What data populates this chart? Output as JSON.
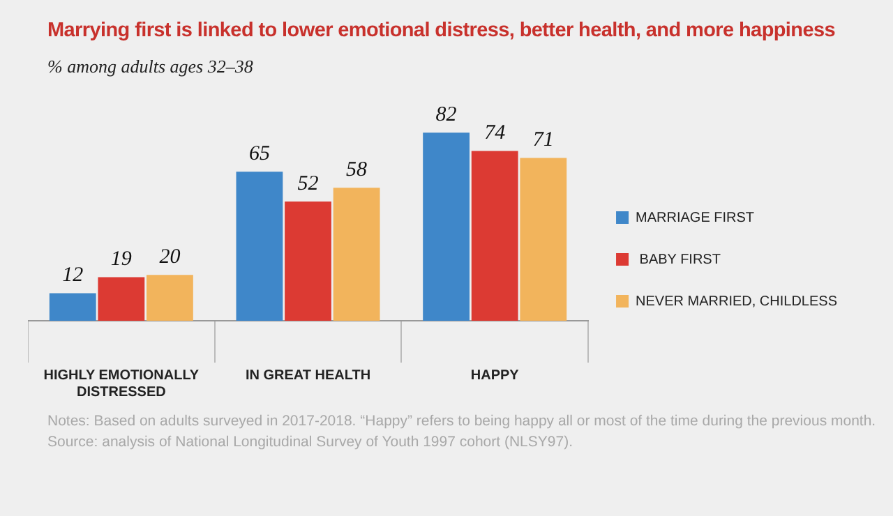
{
  "chart_data": {
    "type": "bar",
    "title": "Marrying first is linked to lower emotional distress, better health, and more happiness",
    "subtitle": "% among adults ages 32–38",
    "categories": [
      "HIGHLY EMOTIONALLY DISTRESSED",
      "IN GREAT HEALTH",
      "HAPPY"
    ],
    "series": [
      {
        "name": "MARRIAGE FIRST",
        "color": "#3f87c9",
        "values": [
          12,
          65,
          82
        ]
      },
      {
        "name": " BABY FIRST",
        "color": "#dc3a33",
        "values": [
          19,
          52,
          74
        ]
      },
      {
        "name": "NEVER MARRIED, CHILDLESS",
        "color": "#f2b45c",
        "values": [
          20,
          58,
          71
        ]
      }
    ],
    "data_labels": true,
    "legend": "right",
    "grid": false,
    "tick_labels": "x",
    "annotations": [
      "Notes: Based on adults surveyed in 2017-2018. “Happy” refers to being happy all or most of the time during the previous month.",
      "Source: analysis of National Longitudinal Survey of Youth 1997 cohort (NLSY97)."
    ]
  }
}
